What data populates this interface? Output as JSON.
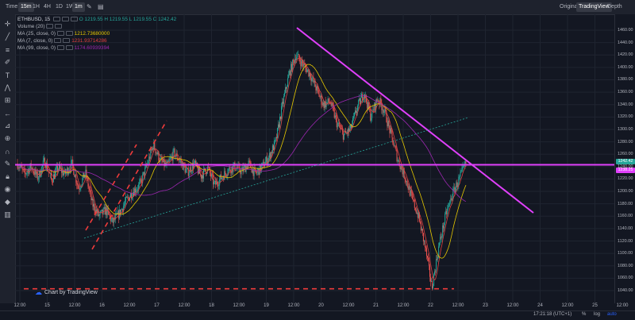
{
  "toolbar": {
    "time_label": "Time",
    "intervals": [
      "15m",
      "1H",
      "4H",
      "1D",
      "1W",
      "1m"
    ],
    "active_intervals": [
      "15m",
      "1m"
    ],
    "view_tabs": [
      "Original",
      "TradingView",
      "Depth"
    ],
    "active_view": "TradingView"
  },
  "legend": {
    "symbol": "ETHBUSD, 15",
    "open": "O 1219.55",
    "high": "H 1219.55",
    "low": "L 1219.55",
    "close": "C 1242.42",
    "volume": "Volume (20)",
    "ma1_label": "MA (25, close, 0)",
    "ma1_value": "1212.73680000",
    "ma2_label": "MA (7, close, 0)",
    "ma2_value": "1231.93714286",
    "ma3_label": "MA (99, close, 0)",
    "ma3_value": "1174.60939394",
    "colors": {
      "ma25": "#e6c800",
      "ma7": "#e04040",
      "ma99": "#9c27b0"
    }
  },
  "price_axis": {
    "ticks": [
      "1460.00",
      "1440.00",
      "1420.00",
      "1400.00",
      "1380.00",
      "1360.00",
      "1340.00",
      "1320.00",
      "1300.00",
      "1280.00",
      "1260.00",
      "1240.00",
      "1220.00",
      "1200.00",
      "1180.00",
      "1160.00",
      "1140.00",
      "1120.00",
      "1100.00",
      "1080.00",
      "1060.00",
      "1040.00"
    ],
    "last_price": "1242.42",
    "ma_price": "1238.25"
  },
  "time_axis": {
    "labels": [
      "12:00",
      "15",
      "12:00",
      "16",
      "12:00",
      "17",
      "12:00",
      "18",
      "12:00",
      "19",
      "12:00",
      "20",
      "12:00",
      "21",
      "12:00",
      "22",
      "12:00",
      "23",
      "12:00",
      "24",
      "12:00",
      "25",
      "12:00"
    ]
  },
  "status": {
    "clock": "17:21:18 (UTC+1)",
    "percent": "%",
    "log": "log",
    "auto": "auto"
  },
  "watermark": "Chart by TradingView",
  "chart_data": {
    "type": "candlestick",
    "symbol": "ETHBUSD",
    "interval": "15",
    "y_range": [
      1040,
      1460
    ],
    "series": [
      {
        "name": "price",
        "values": [
          1245,
          1228,
          1240,
          1222,
          1250,
          1218,
          1238,
          1228,
          1245,
          1205,
          1230,
          1180,
          1160,
          1170,
          1150,
          1165,
          1185,
          1200,
          1210,
          1240,
          1275,
          1250,
          1240,
          1262,
          1248,
          1230,
          1245,
          1225,
          1238,
          1210,
          1222,
          1235,
          1240,
          1232,
          1245,
          1228,
          1240,
          1255,
          1280,
          1340,
          1390,
          1420,
          1405,
          1390,
          1365,
          1340,
          1345,
          1310,
          1290,
          1300,
          1335,
          1360,
          1320,
          1350,
          1330,
          1290,
          1250,
          1225,
          1190,
          1160,
          1110,
          1045,
          1110,
          1160,
          1195,
          1220,
          1245
        ]
      },
      {
        "name": "MA (25, close, 0)",
        "color": "#e6c800"
      },
      {
        "name": "MA (7, close, 0)",
        "color": "#e04040"
      },
      {
        "name": "MA (99, close, 0)",
        "color": "#9c27b0"
      }
    ],
    "annotations": {
      "horizontal_line": 1243,
      "support_dashed": 1043,
      "descending_trendline": [
        [
          1440
        ],
        [
          1180
        ]
      ],
      "rising_trendline": [
        [
          1132
        ],
        [
          1300
        ]
      ]
    },
    "grid": true
  }
}
